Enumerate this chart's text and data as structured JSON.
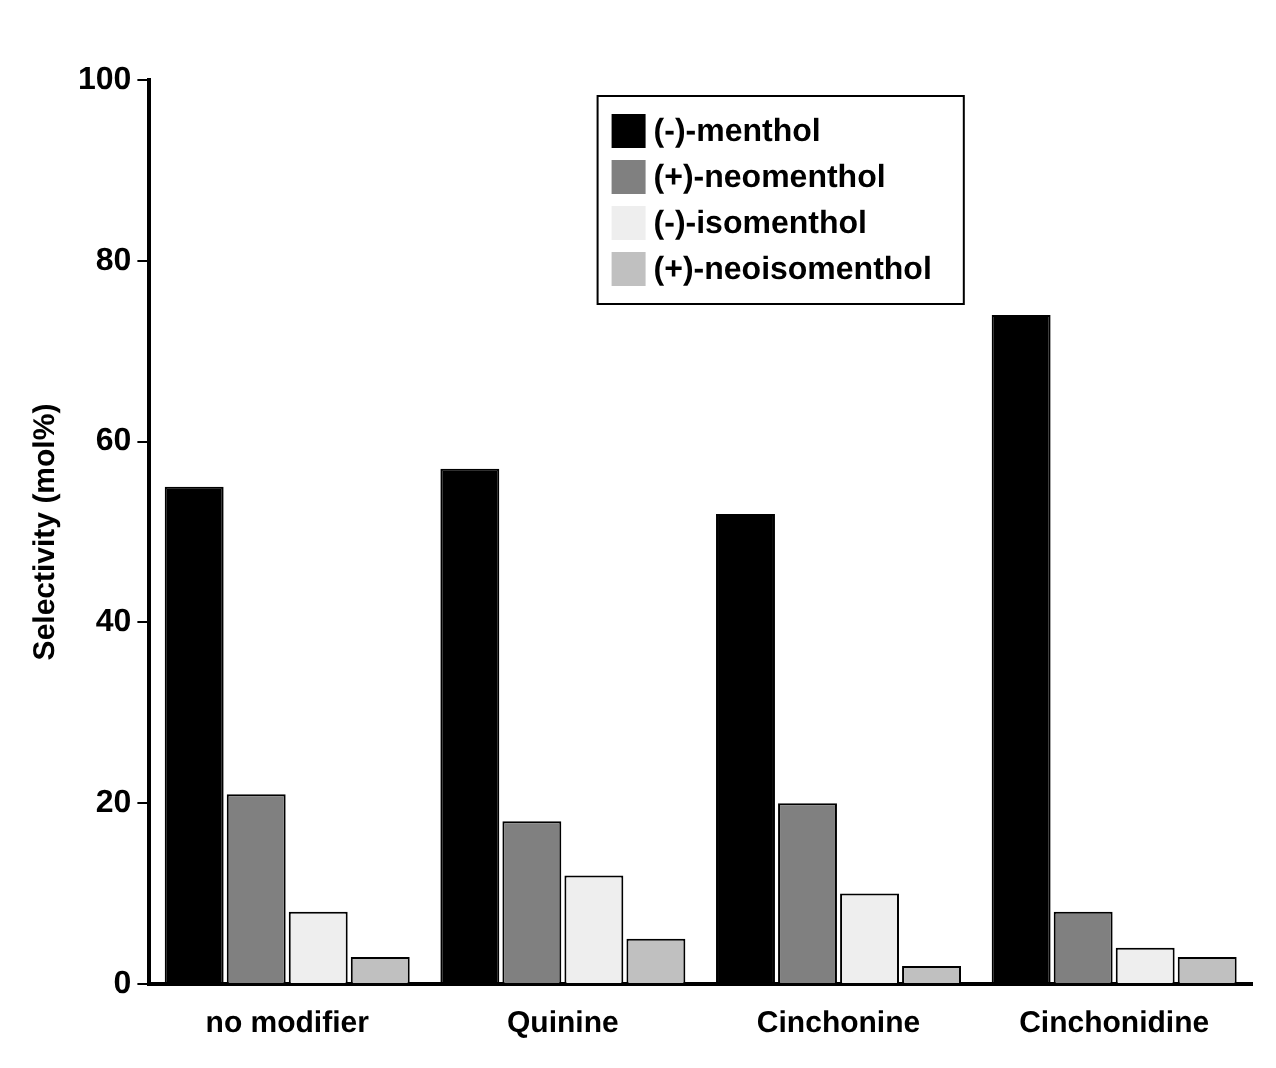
{
  "chart_data": {
    "type": "bar",
    "ylabel": "Selectivity (mol%)",
    "categories": [
      "no modifier",
      "Quinine",
      "Cinchonine",
      "Cinchonidine"
    ],
    "series": [
      {
        "name": "(-)-menthol",
        "color": "#000000",
        "values": [
          55,
          57,
          52,
          74
        ]
      },
      {
        "name": "(+)-neomenthol",
        "color": "#808080",
        "values": [
          21,
          18,
          20,
          8
        ]
      },
      {
        "name": "(-)-isomenthol",
        "color": "#eeeeee",
        "values": [
          8,
          12,
          10,
          4
        ]
      },
      {
        "name": "(+)-neoisomenthol",
        "color": "#c0c0c0",
        "values": [
          3,
          5,
          2,
          3
        ]
      }
    ],
    "ylim": [
      0,
      100
    ],
    "yticks": [
      0,
      20,
      40,
      60,
      80,
      100
    ],
    "grid": false,
    "legend": "top"
  }
}
